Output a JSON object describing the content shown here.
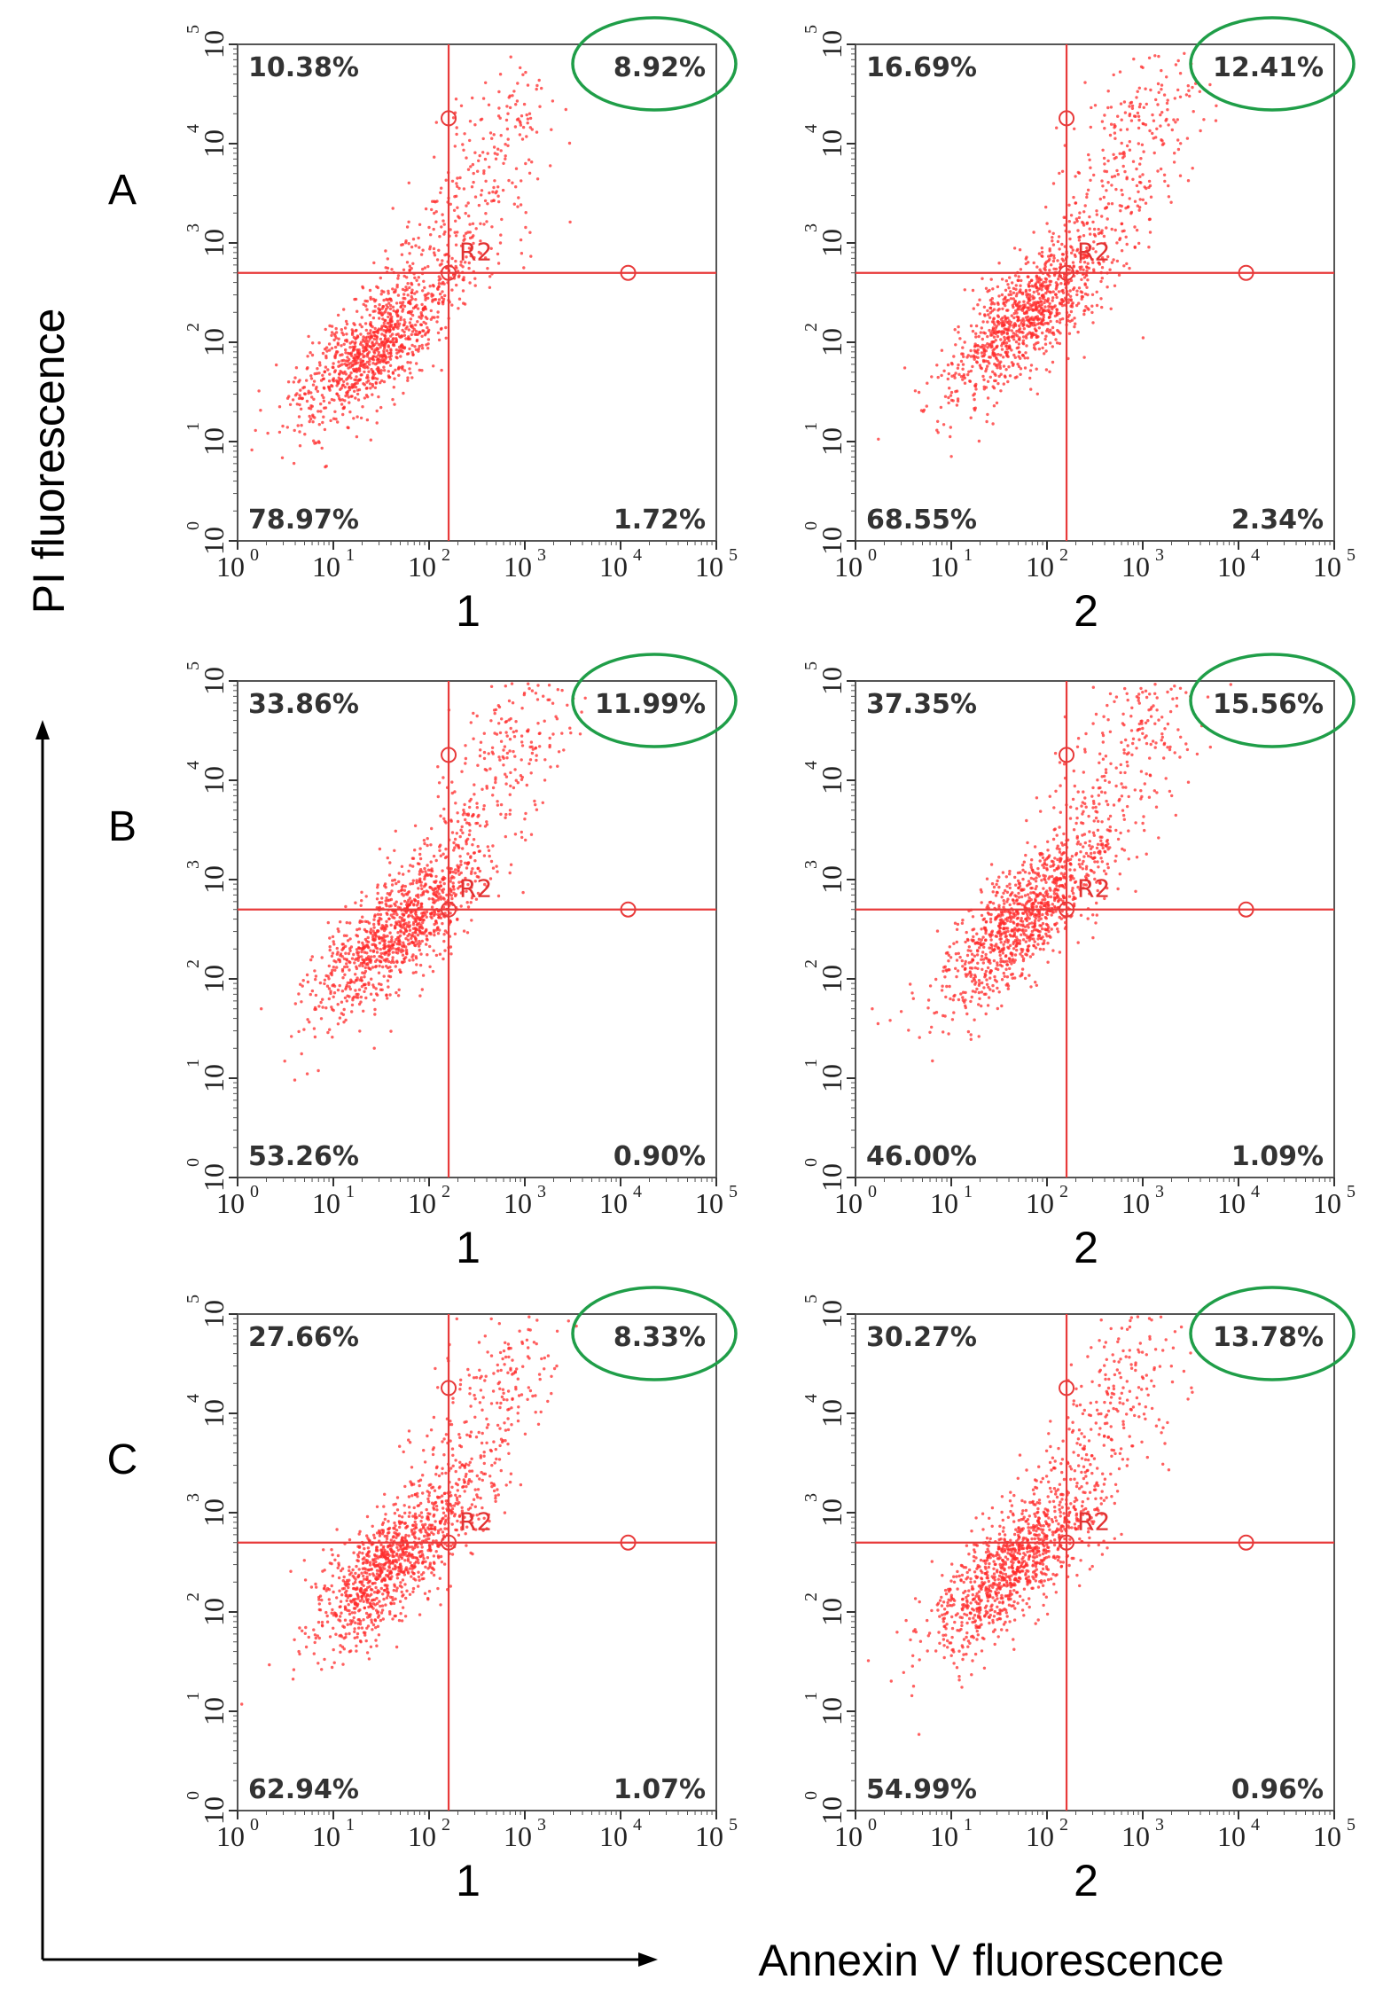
{
  "axes": {
    "xlabel": "Annexin V fluorescence",
    "ylabel": "PI fluorescence"
  },
  "chart_data": [
    {
      "type": "scatter",
      "row": "A",
      "column": "1",
      "quadrants": {
        "UL": "10.38%",
        "UR": "8.92%",
        "LL": "78.97%",
        "LR": "1.72%"
      },
      "highlighted": "UR",
      "gate": "R2",
      "gate_x": 160,
      "gate_y": 500,
      "cluster": {
        "cx": 30,
        "cy": 100
      },
      "xlim": [
        1,
        100000
      ],
      "ylim": [
        1,
        100000
      ],
      "x_ticks": [
        "10",
        "10",
        "10",
        "10",
        "10",
        "10"
      ],
      "y_ticks": [
        "10",
        "10",
        "10",
        "10",
        "10",
        "10"
      ],
      "tick_exp": [
        "0",
        "1",
        "2",
        "3",
        "4",
        "5"
      ]
    },
    {
      "type": "scatter",
      "row": "A",
      "column": "2",
      "quadrants": {
        "UL": "16.69%",
        "UR": "12.41%",
        "LL": "68.55%",
        "LR": "2.34%"
      },
      "highlighted": "UR",
      "gate": "R2",
      "gate_x": 160,
      "gate_y": 500,
      "cluster": {
        "cx": 60,
        "cy": 180
      },
      "xlim": [
        1,
        100000
      ],
      "ylim": [
        1,
        100000
      ],
      "x_ticks": [
        "10",
        "10",
        "10",
        "10",
        "10",
        "10"
      ],
      "y_ticks": [
        "10",
        "10",
        "10",
        "10",
        "10",
        "10"
      ],
      "tick_exp": [
        "0",
        "1",
        "2",
        "3",
        "4",
        "5"
      ]
    },
    {
      "type": "scatter",
      "row": "B",
      "column": "1",
      "quadrants": {
        "UL": "33.86%",
        "UR": "11.99%",
        "LL": "53.26%",
        "LR": "0.90%"
      },
      "highlighted": "UR",
      "gate": "R2",
      "gate_x": 160,
      "gate_y": 500,
      "cluster": {
        "cx": 45,
        "cy": 300
      },
      "xlim": [
        1,
        100000
      ],
      "ylim": [
        1,
        100000
      ],
      "x_ticks": [
        "10",
        "10",
        "10",
        "10",
        "10",
        "10"
      ],
      "y_ticks": [
        "10",
        "10",
        "10",
        "10",
        "10",
        "10"
      ],
      "tick_exp": [
        "0",
        "1",
        "2",
        "3",
        "4",
        "5"
      ]
    },
    {
      "type": "scatter",
      "row": "B",
      "column": "2",
      "quadrants": {
        "UL": "37.35%",
        "UR": "15.56%",
        "LL": "46.00%",
        "LR": "1.09%"
      },
      "highlighted": "UR",
      "gate": "R2",
      "gate_x": 160,
      "gate_y": 500,
      "cluster": {
        "cx": 55,
        "cy": 400
      },
      "xlim": [
        1,
        100000
      ],
      "ylim": [
        1,
        100000
      ],
      "x_ticks": [
        "10",
        "10",
        "10",
        "10",
        "10",
        "10"
      ],
      "y_ticks": [
        "10",
        "10",
        "10",
        "10",
        "10",
        "10"
      ],
      "tick_exp": [
        "0",
        "1",
        "2",
        "3",
        "4",
        "5"
      ]
    },
    {
      "type": "scatter",
      "row": "C",
      "column": "1",
      "quadrants": {
        "UL": "27.66%",
        "UR": "8.33%",
        "LL": "62.94%",
        "LR": "1.07%"
      },
      "highlighted": "UR",
      "gate": "R2",
      "gate_x": 160,
      "gate_y": 500,
      "cluster": {
        "cx": 40,
        "cy": 300
      },
      "xlim": [
        1,
        100000
      ],
      "ylim": [
        1,
        100000
      ],
      "x_ticks": [
        "10",
        "10",
        "10",
        "10",
        "10",
        "10"
      ],
      "y_ticks": [
        "10",
        "10",
        "10",
        "10",
        "10",
        "10"
      ],
      "tick_exp": [
        "0",
        "1",
        "2",
        "3",
        "4",
        "5"
      ]
    },
    {
      "type": "scatter",
      "row": "C",
      "column": "2",
      "quadrants": {
        "UL": "30.27%",
        "UR": "13.78%",
        "LL": "54.99%",
        "LR": "0.96%"
      },
      "highlighted": "UR",
      "gate": "R2",
      "gate_x": 160,
      "gate_y": 500,
      "cluster": {
        "cx": 45,
        "cy": 300
      },
      "xlim": [
        1,
        100000
      ],
      "ylim": [
        1,
        100000
      ],
      "x_ticks": [
        "10",
        "10",
        "10",
        "10",
        "10",
        "10"
      ],
      "y_ticks": [
        "10",
        "10",
        "10",
        "10",
        "10",
        "10"
      ],
      "tick_exp": [
        "0",
        "1",
        "2",
        "3",
        "4",
        "5"
      ]
    }
  ],
  "colors": {
    "dots": "#ff2b2b",
    "gate": "#e83a3a",
    "highlight": "#1f9e48",
    "frame": "#555555"
  }
}
